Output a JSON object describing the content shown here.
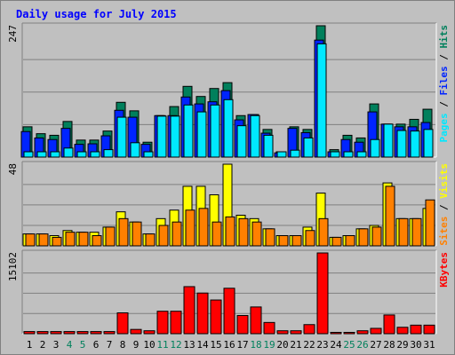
{
  "chart_data": [
    {
      "type": "bar",
      "title": "Daily usage for July 2015",
      "ylabel_max": "247",
      "legend": [
        "Pages",
        "Files",
        "Hits"
      ],
      "legend_separator": "/",
      "colors": {
        "Hits": "#00805c",
        "Files": "#0024ff",
        "Pages": "#00e8ff"
      },
      "categories": [
        "1",
        "2",
        "3",
        "4",
        "5",
        "6",
        "7",
        "8",
        "9",
        "10",
        "11",
        "12",
        "13",
        "14",
        "15",
        "16",
        "17",
        "18",
        "19",
        "20",
        "21",
        "22",
        "23",
        "24",
        "25",
        "26",
        "27",
        "28",
        "29",
        "30",
        "31"
      ],
      "weekend_days": [
        "4",
        "5",
        "11",
        "12",
        "18",
        "19",
        "25",
        "26"
      ],
      "ylim": [
        0,
        247
      ],
      "series": [
        {
          "name": "Hits",
          "values": [
            57,
            44,
            41,
            67,
            32,
            32,
            49,
            103,
            87,
            28,
            78,
            95,
            133,
            114,
            129,
            140,
            78,
            80,
            52,
            10,
            57,
            52,
            247,
            14,
            41,
            36,
            100,
            62,
            62,
            71,
            90
          ]
        },
        {
          "name": "Files",
          "values": [
            48,
            36,
            33,
            54,
            24,
            25,
            40,
            88,
            75,
            24,
            78,
            78,
            113,
            100,
            104,
            125,
            70,
            80,
            45,
            8,
            54,
            46,
            220,
            10,
            33,
            28,
            85,
            62,
            57,
            57,
            65
          ]
        },
        {
          "name": "Pages",
          "values": [
            10,
            10,
            10,
            17,
            10,
            10,
            14,
            75,
            27,
            10,
            77,
            77,
            98,
            85,
            98,
            108,
            59,
            78,
            41,
            10,
            13,
            36,
            213,
            10,
            10,
            10,
            33,
            62,
            50,
            49,
            52
          ]
        }
      ]
    },
    {
      "type": "bar",
      "ylabel_max": "48",
      "legend": [
        "Sites",
        "Visits"
      ],
      "legend_separator": "/",
      "colors": {
        "Visits": "#ffff00",
        "Sites": "#ff8000"
      },
      "ylim": [
        0,
        48
      ],
      "series": [
        {
          "name": "Visits",
          "values": [
            7,
            7,
            6,
            9,
            8,
            8,
            11,
            20,
            14,
            7,
            16,
            21,
            35,
            35,
            30,
            48,
            18,
            16,
            10,
            6,
            6,
            11,
            31,
            5,
            6,
            10,
            12,
            37,
            16,
            16,
            22
          ]
        },
        {
          "name": "Sites",
          "values": [
            7,
            7,
            5,
            8,
            8,
            6,
            11,
            16,
            14,
            7,
            12,
            14,
            21,
            22,
            14,
            17,
            16,
            14,
            10,
            6,
            6,
            9,
            16,
            5,
            6,
            10,
            11,
            35,
            16,
            16,
            27
          ]
        }
      ]
    },
    {
      "type": "bar",
      "ylabel_max": "15102",
      "legend": [
        "KBytes"
      ],
      "colors": {
        "KBytes": "#ff0000"
      },
      "ylim": [
        0,
        15102
      ],
      "series": [
        {
          "name": "KBytes",
          "values": [
            400,
            400,
            400,
            400,
            400,
            400,
            400,
            3900,
            800,
            550,
            4200,
            4200,
            8800,
            7600,
            6300,
            8500,
            3400,
            5000,
            2100,
            550,
            550,
            1700,
            15102,
            250,
            250,
            550,
            1000,
            3500,
            1200,
            1600,
            1600
          ]
        }
      ]
    }
  ]
}
